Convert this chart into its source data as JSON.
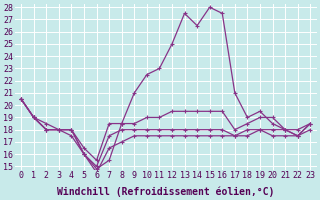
{
  "xlabel": "Windchill (Refroidissement éolien,°C)",
  "background_color": "#c8eaea",
  "grid_color": "#ffffff",
  "line_color": "#883388",
  "hours": [
    0,
    1,
    2,
    3,
    4,
    5,
    6,
    7,
    8,
    9,
    10,
    11,
    12,
    13,
    14,
    15,
    16,
    17,
    18,
    19,
    20,
    21,
    22,
    23
  ],
  "temp_line": [
    20.5,
    19.0,
    18.5,
    18.0,
    18.0,
    16.0,
    14.8,
    15.5,
    18.5,
    21.0,
    22.5,
    23.0,
    25.0,
    27.5,
    26.5,
    28.0,
    27.5,
    21.0,
    19.0,
    19.5,
    18.5,
    18.0,
    17.5,
    18.5
  ],
  "line2": [
    20.5,
    19.0,
    18.0,
    18.0,
    18.0,
    16.5,
    15.5,
    18.5,
    18.5,
    18.5,
    19.0,
    19.0,
    19.5,
    19.5,
    19.5,
    19.5,
    19.5,
    18.0,
    18.5,
    19.0,
    19.0,
    18.0,
    18.0,
    18.5
  ],
  "line3": [
    20.5,
    19.0,
    18.0,
    18.0,
    18.0,
    16.0,
    15.0,
    17.5,
    18.0,
    18.0,
    18.0,
    18.0,
    18.0,
    18.0,
    18.0,
    18.0,
    18.0,
    17.5,
    18.0,
    18.0,
    18.0,
    18.0,
    17.5,
    18.5
  ],
  "line4": [
    20.5,
    19.0,
    18.0,
    18.0,
    17.5,
    16.0,
    14.5,
    16.5,
    17.0,
    17.5,
    17.5,
    17.5,
    17.5,
    17.5,
    17.5,
    17.5,
    17.5,
    17.5,
    17.5,
    18.0,
    17.5,
    17.5,
    17.5,
    18.0
  ],
  "ylim_min": 15,
  "ylim_max": 28,
  "yticks": [
    15,
    16,
    17,
    18,
    19,
    20,
    21,
    22,
    23,
    24,
    25,
    26,
    27,
    28
  ],
  "markersize": 3,
  "linewidth": 0.9,
  "tick_fontsize": 6,
  "xlabel_fontsize": 7
}
